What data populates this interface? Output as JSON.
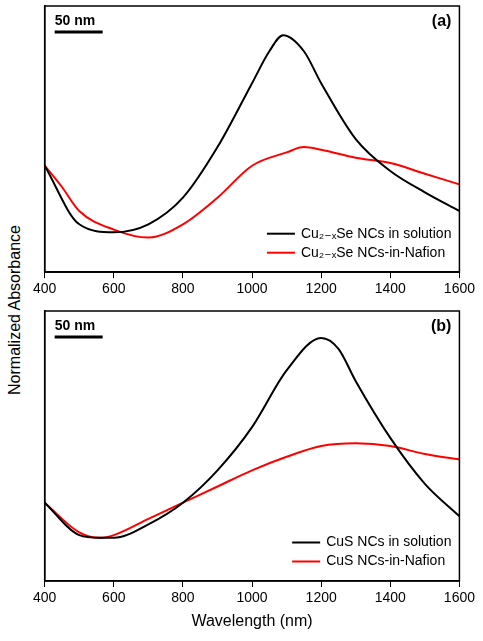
{
  "ylabel": "Normalized Absorbance",
  "chart_data": [
    {
      "type": "line",
      "title": "(a)",
      "inset_label": "50 nm",
      "xlim": [
        400,
        1600
      ],
      "xticks": [
        400,
        600,
        800,
        1000,
        1200,
        1400,
        1600
      ],
      "ylim": [
        0,
        1
      ],
      "tick_labels": "x",
      "grid": false,
      "legend": "lower right",
      "series": [
        {
          "name": "Cu₂₋ₓSe NCs in solution",
          "color": "#000000",
          "marker": "none",
          "line_style": "solid",
          "x": [
            400,
            500,
            600,
            700,
            800,
            900,
            1000,
            1050,
            1090,
            1150,
            1200,
            1300,
            1400,
            1500,
            1600
          ],
          "values": [
            0.4,
            0.18,
            0.15,
            0.18,
            0.28,
            0.47,
            0.71,
            0.83,
            0.89,
            0.83,
            0.71,
            0.5,
            0.38,
            0.3,
            0.23
          ]
        },
        {
          "name": "Cu₂₋ₓSe NCs-in-Nafion",
          "color": "#ff0000",
          "marker": "none",
          "line_style": "solid",
          "x": [
            400,
            450,
            500,
            600,
            700,
            800,
            900,
            1000,
            1100,
            1150,
            1200,
            1300,
            1400,
            1500,
            1600
          ],
          "values": [
            0.4,
            0.32,
            0.23,
            0.16,
            0.13,
            0.18,
            0.28,
            0.4,
            0.45,
            0.47,
            0.46,
            0.43,
            0.41,
            0.37,
            0.33
          ]
        }
      ]
    },
    {
      "type": "line",
      "title": "(b)",
      "inset_label": "50 nm",
      "xlabel": "Wavelength (nm)",
      "xlim": [
        400,
        1600
      ],
      "xticks": [
        400,
        600,
        800,
        1000,
        1200,
        1400,
        1600
      ],
      "ylim": [
        0,
        1
      ],
      "tick_labels": "x",
      "grid": false,
      "legend": "lower right",
      "series": [
        {
          "name": "CuS NCs in solution",
          "color": "#000000",
          "marker": "none",
          "line_style": "solid",
          "x": [
            400,
            500,
            560,
            600,
            700,
            800,
            900,
            1000,
            1100,
            1200,
            1250,
            1300,
            1400,
            1500,
            1600
          ],
          "values": [
            0.29,
            0.17,
            0.16,
            0.16,
            0.21,
            0.29,
            0.41,
            0.57,
            0.78,
            0.9,
            0.86,
            0.74,
            0.53,
            0.36,
            0.24
          ]
        },
        {
          "name": "CuS NCs-in-Nafion",
          "color": "#ff0000",
          "marker": "none",
          "line_style": "solid",
          "x": [
            400,
            500,
            560,
            600,
            700,
            800,
            900,
            1000,
            1100,
            1200,
            1300,
            1400,
            1500,
            1600
          ],
          "values": [
            0.29,
            0.18,
            0.16,
            0.17,
            0.23,
            0.29,
            0.35,
            0.41,
            0.46,
            0.5,
            0.51,
            0.5,
            0.47,
            0.45
          ]
        }
      ]
    }
  ]
}
